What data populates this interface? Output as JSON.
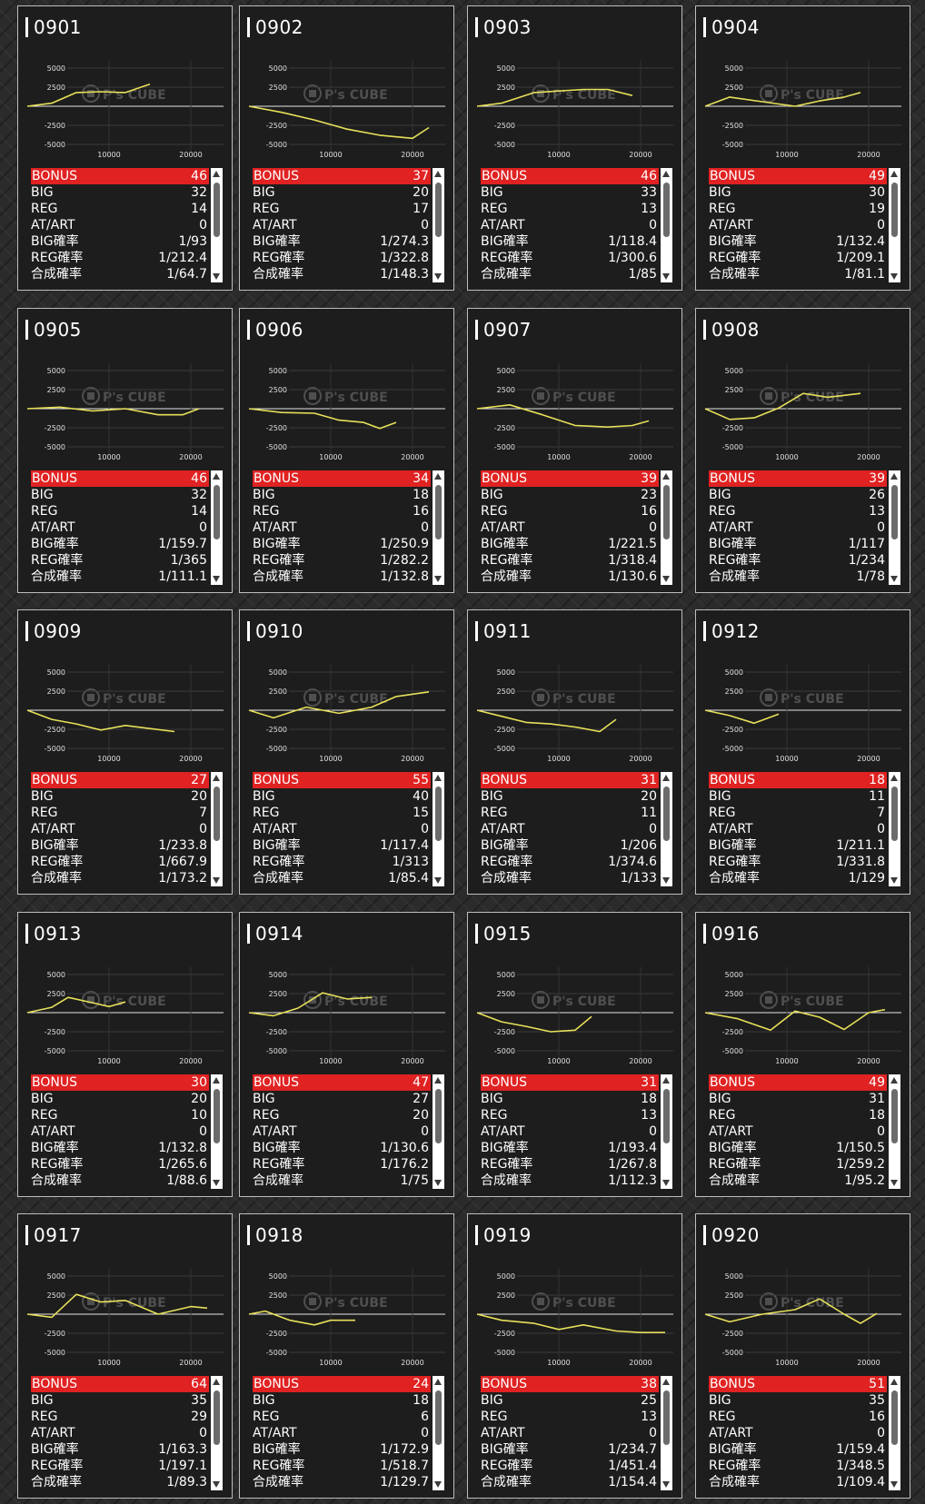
{
  "labels": {
    "bonus": "BONUS",
    "big": "BIG",
    "reg": "REG",
    "atart": "AT/ART",
    "big_rate": "BIG確率",
    "reg_rate": "REG確率",
    "total_rate": "合成確率"
  },
  "chart_common": {
    "y_ticks": [
      "5000",
      "2500",
      "-2500",
      "-5000"
    ],
    "x_ticks": [
      "10000",
      "20000"
    ],
    "watermark": "P's CUBE",
    "line_color": "#e8e05a",
    "bonus_color": "#e02222"
  },
  "machines": [
    {
      "id": "0901",
      "bonus": "46",
      "big": "32",
      "reg": "14",
      "atart": "0",
      "big_rate": "1/93",
      "reg_rate": "1/212.4",
      "total_rate": "1/64.7"
    },
    {
      "id": "0902",
      "bonus": "37",
      "big": "20",
      "reg": "17",
      "atart": "0",
      "big_rate": "1/274.3",
      "reg_rate": "1/322.8",
      "total_rate": "1/148.3"
    },
    {
      "id": "0903",
      "bonus": "46",
      "big": "33",
      "reg": "13",
      "atart": "0",
      "big_rate": "1/118.4",
      "reg_rate": "1/300.6",
      "total_rate": "1/85"
    },
    {
      "id": "0904",
      "bonus": "49",
      "big": "30",
      "reg": "19",
      "atart": "0",
      "big_rate": "1/132.4",
      "reg_rate": "1/209.1",
      "total_rate": "1/81.1"
    },
    {
      "id": "0905",
      "bonus": "46",
      "big": "32",
      "reg": "14",
      "atart": "0",
      "big_rate": "1/159.7",
      "reg_rate": "1/365",
      "total_rate": "1/111.1"
    },
    {
      "id": "0906",
      "bonus": "34",
      "big": "18",
      "reg": "16",
      "atart": "0",
      "big_rate": "1/250.9",
      "reg_rate": "1/282.2",
      "total_rate": "1/132.8"
    },
    {
      "id": "0907",
      "bonus": "39",
      "big": "23",
      "reg": "16",
      "atart": "0",
      "big_rate": "1/221.5",
      "reg_rate": "1/318.4",
      "total_rate": "1/130.6"
    },
    {
      "id": "0908",
      "bonus": "39",
      "big": "26",
      "reg": "13",
      "atart": "0",
      "big_rate": "1/117",
      "reg_rate": "1/234",
      "total_rate": "1/78"
    },
    {
      "id": "0909",
      "bonus": "27",
      "big": "20",
      "reg": "7",
      "atart": "0",
      "big_rate": "1/233.8",
      "reg_rate": "1/667.9",
      "total_rate": "1/173.2"
    },
    {
      "id": "0910",
      "bonus": "55",
      "big": "40",
      "reg": "15",
      "atart": "0",
      "big_rate": "1/117.4",
      "reg_rate": "1/313",
      "total_rate": "1/85.4"
    },
    {
      "id": "0911",
      "bonus": "31",
      "big": "20",
      "reg": "11",
      "atart": "0",
      "big_rate": "1/206",
      "reg_rate": "1/374.6",
      "total_rate": "1/133"
    },
    {
      "id": "0912",
      "bonus": "18",
      "big": "11",
      "reg": "7",
      "atart": "0",
      "big_rate": "1/211.1",
      "reg_rate": "1/331.8",
      "total_rate": "1/129"
    },
    {
      "id": "0913",
      "bonus": "30",
      "big": "20",
      "reg": "10",
      "atart": "0",
      "big_rate": "1/132.8",
      "reg_rate": "1/265.6",
      "total_rate": "1/88.6"
    },
    {
      "id": "0914",
      "bonus": "47",
      "big": "27",
      "reg": "20",
      "atart": "0",
      "big_rate": "1/130.6",
      "reg_rate": "1/176.2",
      "total_rate": "1/75"
    },
    {
      "id": "0915",
      "bonus": "31",
      "big": "18",
      "reg": "13",
      "atart": "0",
      "big_rate": "1/193.4",
      "reg_rate": "1/267.8",
      "total_rate": "1/112.3"
    },
    {
      "id": "0916",
      "bonus": "49",
      "big": "31",
      "reg": "18",
      "atart": "0",
      "big_rate": "1/150.5",
      "reg_rate": "1/259.2",
      "total_rate": "1/95.2"
    },
    {
      "id": "0917",
      "bonus": "64",
      "big": "35",
      "reg": "29",
      "atart": "0",
      "big_rate": "1/163.3",
      "reg_rate": "1/197.1",
      "total_rate": "1/89.3"
    },
    {
      "id": "0918",
      "bonus": "24",
      "big": "18",
      "reg": "6",
      "atart": "0",
      "big_rate": "1/172.9",
      "reg_rate": "1/518.7",
      "total_rate": "1/129.7"
    },
    {
      "id": "0919",
      "bonus": "38",
      "big": "25",
      "reg": "13",
      "atart": "0",
      "big_rate": "1/234.7",
      "reg_rate": "1/451.4",
      "total_rate": "1/154.4"
    },
    {
      "id": "0920",
      "bonus": "51",
      "big": "35",
      "reg": "16",
      "atart": "0",
      "big_rate": "1/159.4",
      "reg_rate": "1/348.5",
      "total_rate": "1/109.4"
    }
  ],
  "chart_data": [
    {
      "type": "line",
      "x": [
        0,
        3000,
        6000,
        9000,
        12000,
        15000
      ],
      "y": [
        0,
        400,
        1800,
        1900,
        1800,
        2900
      ]
    },
    {
      "type": "line",
      "x": [
        0,
        4000,
        8000,
        12000,
        16000,
        20000,
        22000
      ],
      "y": [
        0,
        -800,
        -1800,
        -3000,
        -3800,
        -4200,
        -2800
      ]
    },
    {
      "type": "line",
      "x": [
        0,
        3000,
        7000,
        10000,
        13000,
        16000,
        19000
      ],
      "y": [
        0,
        400,
        1800,
        2000,
        2200,
        2200,
        1400
      ]
    },
    {
      "type": "line",
      "x": [
        0,
        3000,
        7000,
        11000,
        14000,
        17000,
        19000
      ],
      "y": [
        0,
        1200,
        600,
        0,
        700,
        1200,
        1800
      ]
    },
    {
      "type": "line",
      "x": [
        0,
        4000,
        8000,
        12000,
        16000,
        19000,
        21000
      ],
      "y": [
        0,
        200,
        -300,
        0,
        -800,
        -800,
        0
      ]
    },
    {
      "type": "line",
      "x": [
        0,
        4000,
        8000,
        11000,
        14000,
        16000,
        18000
      ],
      "y": [
        0,
        -500,
        -600,
        -1500,
        -1800,
        -2600,
        -1800
      ]
    },
    {
      "type": "line",
      "x": [
        0,
        4000,
        8000,
        12000,
        16000,
        19000,
        21000
      ],
      "y": [
        0,
        500,
        -800,
        -2200,
        -2400,
        -2200,
        -1600
      ]
    },
    {
      "type": "line",
      "x": [
        0,
        3000,
        6000,
        9000,
        12000,
        15000,
        19000
      ],
      "y": [
        0,
        -1400,
        -1200,
        100,
        2000,
        1500,
        2000
      ]
    },
    {
      "type": "line",
      "x": [
        0,
        3000,
        6000,
        9000,
        12000,
        15000,
        18000
      ],
      "y": [
        0,
        -1200,
        -1800,
        -2600,
        -2000,
        -2400,
        -2800
      ]
    },
    {
      "type": "line",
      "x": [
        0,
        3000,
        7000,
        11000,
        15000,
        18000,
        22000
      ],
      "y": [
        0,
        -1000,
        400,
        -400,
        400,
        1800,
        2400
      ]
    },
    {
      "type": "line",
      "x": [
        0,
        3000,
        6000,
        9000,
        12000,
        15000,
        17000
      ],
      "y": [
        0,
        -800,
        -1600,
        -1800,
        -2200,
        -2800,
        -1200
      ]
    },
    {
      "type": "line",
      "x": [
        0,
        3000,
        6000,
        9000
      ],
      "y": [
        0,
        -700,
        -1700,
        -500
      ]
    },
    {
      "type": "line",
      "x": [
        0,
        3000,
        5000,
        8000,
        10000,
        12000
      ],
      "y": [
        0,
        700,
        2000,
        1300,
        800,
        1400
      ]
    },
    {
      "type": "line",
      "x": [
        0,
        3000,
        6000,
        9000,
        12000,
        15000
      ],
      "y": [
        0,
        -400,
        600,
        2600,
        1800,
        2000
      ]
    },
    {
      "type": "line",
      "x": [
        0,
        3000,
        6000,
        9000,
        12000,
        14000
      ],
      "y": [
        0,
        -1200,
        -1800,
        -2500,
        -2300,
        -500
      ]
    },
    {
      "type": "line",
      "x": [
        0,
        4000,
        8000,
        11000,
        14000,
        17000,
        20000,
        22000
      ],
      "y": [
        0,
        -800,
        -2300,
        200,
        -600,
        -2200,
        0,
        400
      ]
    },
    {
      "type": "line",
      "x": [
        0,
        3000,
        6000,
        9000,
        12000,
        16000,
        20000,
        22000
      ],
      "y": [
        0,
        -400,
        2600,
        1600,
        1800,
        0,
        1000,
        800
      ]
    },
    {
      "type": "line",
      "x": [
        0,
        2000,
        5000,
        8000,
        10000,
        13000
      ],
      "y": [
        0,
        400,
        -800,
        -1400,
        -800,
        -800
      ]
    },
    {
      "type": "line",
      "x": [
        0,
        3000,
        7000,
        10000,
        13000,
        17000,
        20000,
        23000
      ],
      "y": [
        0,
        -800,
        -1200,
        -2000,
        -1400,
        -2200,
        -2400,
        -2400
      ]
    },
    {
      "type": "line",
      "x": [
        0,
        3000,
        7000,
        11000,
        14000,
        17000,
        19000,
        21000
      ],
      "y": [
        0,
        -1000,
        0,
        600,
        2000,
        0,
        -1200,
        100
      ]
    }
  ]
}
